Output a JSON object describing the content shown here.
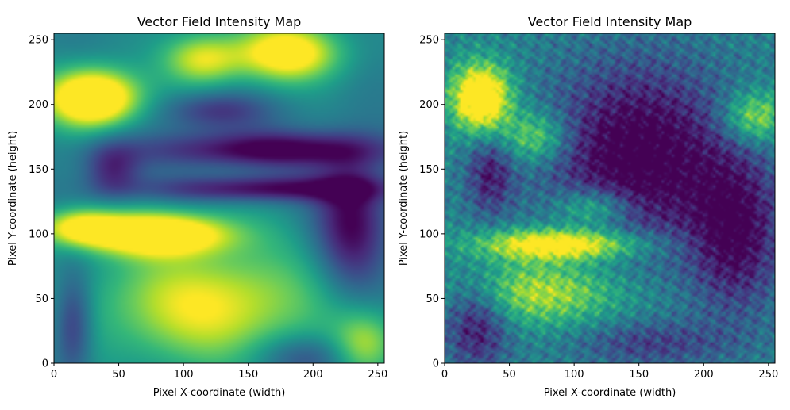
{
  "chart_data": [
    {
      "type": "heatmap",
      "title": "Vector Field Intensity Map",
      "xlabel": "Pixel X-coordinate (width)",
      "ylabel": "Pixel Y-coordinate (height)",
      "xlim": [
        0,
        255
      ],
      "ylim": [
        0,
        255
      ],
      "xticks": [
        0,
        50,
        100,
        150,
        200,
        250
      ],
      "yticks": [
        0,
        50,
        100,
        150,
        200,
        250
      ],
      "colormap": "viridis",
      "grid": false,
      "legend": "none",
      "texture": "smooth",
      "blobs": [
        {
          "x": 30,
          "y": 205,
          "rx": 35,
          "ry": 22,
          "v": 0.95
        },
        {
          "x": 80,
          "y": 100,
          "rx": 55,
          "ry": 16,
          "v": 0.85
        },
        {
          "x": 20,
          "y": 105,
          "rx": 30,
          "ry": 14,
          "v": 0.55
        },
        {
          "x": 120,
          "y": 45,
          "rx": 85,
          "ry": 45,
          "v": 0.55
        },
        {
          "x": 180,
          "y": 240,
          "rx": 40,
          "ry": 22,
          "v": 0.7
        },
        {
          "x": 115,
          "y": 235,
          "rx": 30,
          "ry": 20,
          "v": 0.5
        },
        {
          "x": 240,
          "y": 15,
          "rx": 25,
          "ry": 25,
          "v": 0.4
        },
        {
          "x": 165,
          "y": 165,
          "rx": 90,
          "ry": 14,
          "v": -0.5
        },
        {
          "x": 165,
          "y": 135,
          "rx": 90,
          "ry": 10,
          "v": -0.45
        },
        {
          "x": 230,
          "y": 110,
          "rx": 28,
          "ry": 55,
          "v": -0.45
        },
        {
          "x": 45,
          "y": 150,
          "rx": 22,
          "ry": 22,
          "v": -0.35
        },
        {
          "x": 15,
          "y": 30,
          "rx": 15,
          "ry": 40,
          "v": -0.35
        },
        {
          "x": 125,
          "y": 195,
          "rx": 40,
          "ry": 15,
          "v": -0.3
        },
        {
          "x": 195,
          "y": 5,
          "rx": 40,
          "ry": 18,
          "v": -0.25
        }
      ]
    },
    {
      "type": "heatmap",
      "title": "Vector Field Intensity Map",
      "xlabel": "Pixel X-coordinate (width)",
      "ylabel": "Pixel Y-coordinate (height)",
      "xlim": [
        0,
        255
      ],
      "ylim": [
        0,
        255
      ],
      "xticks": [
        0,
        50,
        100,
        150,
        200,
        250
      ],
      "yticks": [
        0,
        50,
        100,
        150,
        200,
        250
      ],
      "colormap": "viridis",
      "grid": false,
      "legend": "none",
      "texture": "turbulent",
      "blobs": [
        {
          "x": 28,
          "y": 205,
          "rx": 22,
          "ry": 25,
          "v": 0.9
        },
        {
          "x": 90,
          "y": 92,
          "rx": 60,
          "ry": 12,
          "v": 0.75
        },
        {
          "x": 75,
          "y": 55,
          "rx": 60,
          "ry": 25,
          "v": 0.45
        },
        {
          "x": 115,
          "y": 120,
          "rx": 30,
          "ry": 15,
          "v": 0.4
        },
        {
          "x": 240,
          "y": 190,
          "rx": 25,
          "ry": 20,
          "v": 0.45
        },
        {
          "x": 70,
          "y": 175,
          "rx": 25,
          "ry": 20,
          "v": 0.4
        },
        {
          "x": 150,
          "y": 160,
          "rx": 70,
          "ry": 70,
          "v": -0.55
        },
        {
          "x": 225,
          "y": 100,
          "rx": 35,
          "ry": 60,
          "v": -0.45
        },
        {
          "x": 25,
          "y": 30,
          "rx": 25,
          "ry": 35,
          "v": -0.4
        },
        {
          "x": 35,
          "y": 145,
          "rx": 18,
          "ry": 30,
          "v": -0.35
        },
        {
          "x": 160,
          "y": 15,
          "rx": 60,
          "ry": 18,
          "v": -0.25
        }
      ]
    }
  ]
}
